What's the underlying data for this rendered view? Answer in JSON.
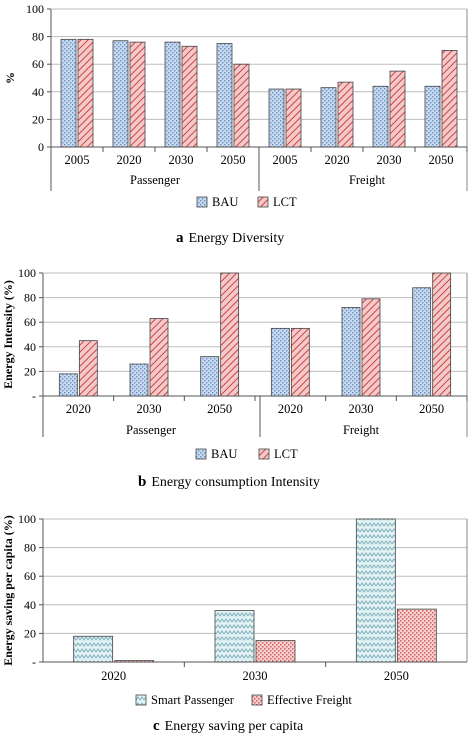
{
  "colors": {
    "bau": "#c6d9f0",
    "lct": "#f2b8b8",
    "smart": "#d6ecf0",
    "freight": "#f7c6c6"
  },
  "chart_data": [
    {
      "type": "bar",
      "caption_letter": "a",
      "caption_text": "Energy Diversity",
      "ylabel": "%",
      "ylim": [
        0,
        100
      ],
      "yticks": [
        "0",
        "20",
        "40",
        "60",
        "80",
        "100"
      ],
      "categories": [
        "2005",
        "2020",
        "2030",
        "2050",
        "2005",
        "2020",
        "2030",
        "2050"
      ],
      "groups": [
        {
          "name": "Passenger",
          "span": 4
        },
        {
          "name": "Freight",
          "span": 4
        }
      ],
      "series": [
        {
          "name": "BAU",
          "values": [
            78,
            77,
            76,
            75,
            42,
            43,
            44,
            44
          ]
        },
        {
          "name": "LCT",
          "values": [
            78,
            76,
            73,
            60,
            42,
            47,
            55,
            70
          ]
        }
      ],
      "grid": true,
      "legend": "bottom"
    },
    {
      "type": "bar",
      "caption_letter": "b",
      "caption_text": "Energy consumption Intensity",
      "ylabel": "Energy Intensity (%)",
      "ylim": [
        0,
        100
      ],
      "yticks": [
        "-",
        "20",
        "40",
        "60",
        "80",
        "100"
      ],
      "categories": [
        "2020",
        "2030",
        "2050",
        "2020",
        "2030",
        "2050"
      ],
      "groups": [
        {
          "name": "Passenger",
          "span": 3
        },
        {
          "name": "Freight",
          "span": 3
        }
      ],
      "series": [
        {
          "name": "BAU",
          "values": [
            18,
            26,
            32,
            55,
            72,
            88
          ]
        },
        {
          "name": "LCT",
          "values": [
            45,
            63,
            100,
            55,
            79,
            100
          ]
        }
      ],
      "grid": true,
      "legend": "bottom"
    },
    {
      "type": "bar",
      "caption_letter": "c",
      "caption_text": "Energy saving per capita",
      "ylabel": "Energy saving per capita (%)",
      "ylim": [
        0,
        100
      ],
      "yticks": [
        "-",
        "20",
        "40",
        "60",
        "80",
        "100"
      ],
      "categories": [
        "2020",
        "2030",
        "2050"
      ],
      "groups": [],
      "series": [
        {
          "name": "Smart Passenger",
          "values": [
            18,
            36,
            100
          ]
        },
        {
          "name": "Effective Freight",
          "values": [
            1,
            15,
            37
          ]
        }
      ],
      "grid": true,
      "legend": "bottom"
    }
  ]
}
